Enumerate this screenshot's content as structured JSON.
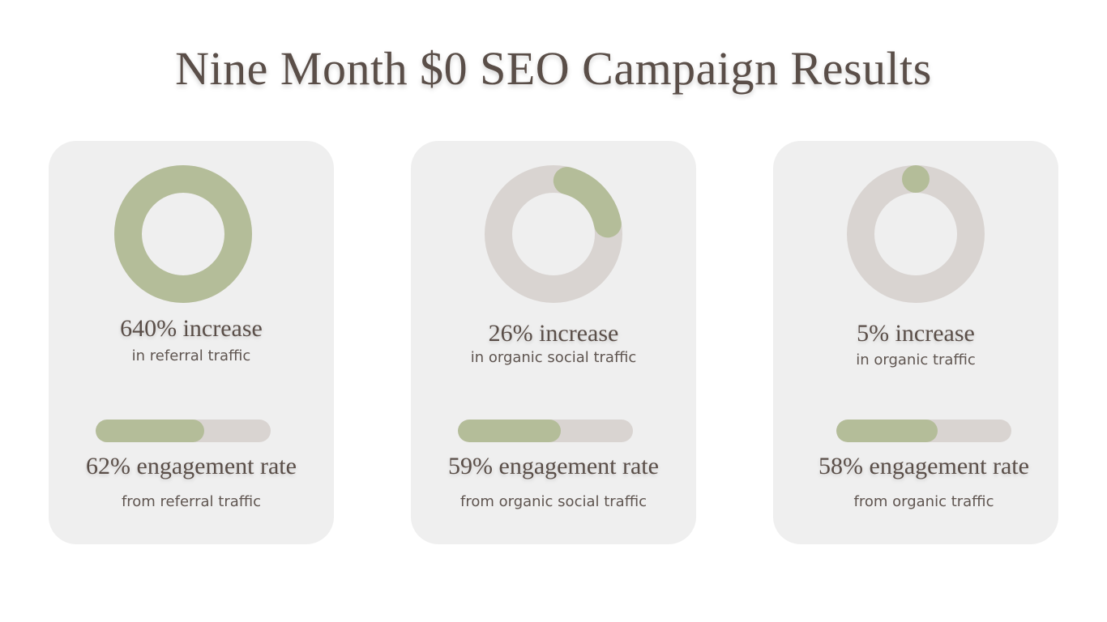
{
  "title": "Nine Month $0 SEO Campaign Results",
  "colors": {
    "accent": "#b4bd99",
    "track": "#d9d4d1",
    "card": "#efefef",
    "text": "#5a4e48"
  },
  "chart_data": [
    {
      "type": "pie",
      "title": "640% increase",
      "subtitle": "in referral traffic",
      "value_percent": 640,
      "ring_fill_fraction": 1.0
    },
    {
      "type": "pie",
      "title": "26% increase",
      "subtitle": "in organic social traffic",
      "value_percent": 26,
      "ring_fill_fraction": 0.26
    },
    {
      "type": "pie",
      "title": "5% increase",
      "subtitle": "in organic traffic",
      "value_percent": 5,
      "ring_fill_fraction": 0.05
    },
    {
      "type": "bar",
      "title": "62% engagement rate",
      "subtitle": "from referral traffic",
      "value_percent": 62
    },
    {
      "type": "bar",
      "title": "59% engagement rate",
      "subtitle": "from organic social traffic",
      "value_percent": 59
    },
    {
      "type": "bar",
      "title": "58% engagement rate",
      "subtitle": "from organic traffic",
      "value_percent": 58
    }
  ]
}
